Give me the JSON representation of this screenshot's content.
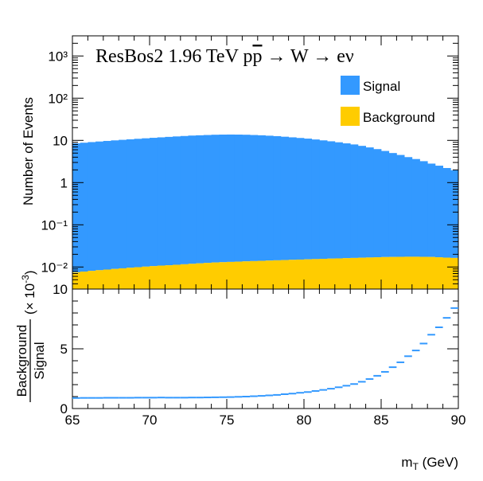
{
  "chart_data": [
    {
      "type": "area",
      "panel": "top",
      "title": "ResBos2 1.96 TeV pp̄ → W → eν",
      "title_parts": {
        "generator": "ResBos2",
        "energy": "1.96 TeV",
        "p": "p",
        "pbar": "p",
        "arrow1": "→",
        "w": "W",
        "arrow2": "→",
        "final": "eν"
      },
      "ylabel": "Number of Events",
      "xlim": [
        65,
        90
      ],
      "ylim": [
        0.003,
        3000
      ],
      "yscale": "log",
      "ytick_labels": [
        "10⁻²",
        "10⁻¹",
        "1",
        "10",
        "10²",
        "10³"
      ],
      "ytick_values": [
        0.01,
        0.1,
        1,
        10,
        100,
        1000
      ],
      "legend_position": "top-right",
      "stacked": true,
      "series": [
        {
          "name": "Signal",
          "color": "#3399ff",
          "x": [
            65,
            65.5,
            66,
            66.5,
            67,
            67.5,
            68,
            68.5,
            69,
            69.5,
            70,
            70.5,
            71,
            71.5,
            72,
            72.5,
            73,
            73.5,
            74,
            74.5,
            75,
            75.5,
            76,
            76.5,
            77,
            77.5,
            78,
            78.5,
            79,
            79.5,
            80,
            80.5,
            81,
            81.5,
            82,
            82.5,
            83,
            83.5,
            84,
            84.5,
            85,
            85.5,
            86,
            86.5,
            87,
            87.5,
            88,
            88.5,
            89,
            89.5
          ],
          "values": [
            8.5,
            8.8,
            9.1,
            9.4,
            9.7,
            10.0,
            10.3,
            10.6,
            10.9,
            11.2,
            11.5,
            11.8,
            12.1,
            12.4,
            12.7,
            13.0,
            13.2,
            13.4,
            13.6,
            13.7,
            13.75,
            13.7,
            13.6,
            13.4,
            13.2,
            12.9,
            12.6,
            12.2,
            11.8,
            11.4,
            11.0,
            10.5,
            10.0,
            9.5,
            9.0,
            8.5,
            8.0,
            7.4,
            6.8,
            6.2,
            5.6,
            5.0,
            4.5,
            4.0,
            3.6,
            3.2,
            2.8,
            2.5,
            2.2,
            1.95
          ]
        },
        {
          "name": "Background",
          "color": "#ffcc00",
          "x": [
            65,
            65.5,
            66,
            66.5,
            67,
            67.5,
            68,
            68.5,
            69,
            69.5,
            70,
            70.5,
            71,
            71.5,
            72,
            72.5,
            73,
            73.5,
            74,
            74.5,
            75,
            75.5,
            76,
            76.5,
            77,
            77.5,
            78,
            78.5,
            79,
            79.5,
            80,
            80.5,
            81,
            81.5,
            82,
            82.5,
            83,
            83.5,
            84,
            84.5,
            85,
            85.5,
            86,
            86.5,
            87,
            87.5,
            88,
            88.5,
            89,
            89.5
          ],
          "values": [
            0.0075,
            0.0078,
            0.0081,
            0.0084,
            0.0087,
            0.009,
            0.0093,
            0.0096,
            0.0099,
            0.0102,
            0.0105,
            0.0108,
            0.011,
            0.0113,
            0.0116,
            0.0119,
            0.0122,
            0.0125,
            0.0128,
            0.013,
            0.0132,
            0.0134,
            0.0136,
            0.0138,
            0.014,
            0.0142,
            0.0144,
            0.0146,
            0.0148,
            0.015,
            0.0152,
            0.0154,
            0.0156,
            0.0158,
            0.016,
            0.0162,
            0.0164,
            0.0166,
            0.0168,
            0.017,
            0.0172,
            0.0173,
            0.0174,
            0.0175,
            0.0175,
            0.0174,
            0.0173,
            0.017,
            0.0167,
            0.0164
          ]
        }
      ]
    },
    {
      "type": "line",
      "panel": "bottom",
      "ylabel_num": "Background",
      "ylabel_den": "Signal",
      "ylabel_scale": "(× 10",
      "ylabel_scale_exp": "-3",
      "ylabel_scale_close": ")",
      "xlabel": "m",
      "xlabel_sub": "T",
      "xlabel_unit": " (GeV)",
      "xlim": [
        65,
        90
      ],
      "ylim": [
        0,
        10
      ],
      "xtick_labels": [
        "65",
        "70",
        "75",
        "80",
        "85",
        "90"
      ],
      "xtick_values": [
        65,
        70,
        75,
        80,
        85,
        90
      ],
      "ytick_labels": [
        "0",
        "5",
        "10"
      ],
      "ytick_values": [
        0,
        5,
        10
      ],
      "color": "#3399ff",
      "x": [
        65,
        65.5,
        66,
        66.5,
        67,
        67.5,
        68,
        68.5,
        69,
        69.5,
        70,
        70.5,
        71,
        71.5,
        72,
        72.5,
        73,
        73.5,
        74,
        74.5,
        75,
        75.5,
        76,
        76.5,
        77,
        77.5,
        78,
        78.5,
        79,
        79.5,
        80,
        80.5,
        81,
        81.5,
        82,
        82.5,
        83,
        83.5,
        84,
        84.5,
        85,
        85.5,
        86,
        86.5,
        87,
        87.5,
        88,
        88.5,
        89,
        89.5
      ],
      "values": [
        0.88,
        0.89,
        0.89,
        0.89,
        0.9,
        0.9,
        0.9,
        0.9,
        0.91,
        0.91,
        0.91,
        0.92,
        0.91,
        0.91,
        0.91,
        0.92,
        0.92,
        0.93,
        0.94,
        0.95,
        0.96,
        0.98,
        1.0,
        1.03,
        1.06,
        1.1,
        1.14,
        1.2,
        1.25,
        1.32,
        1.38,
        1.47,
        1.56,
        1.66,
        1.78,
        1.91,
        2.05,
        2.24,
        2.47,
        2.74,
        3.07,
        3.46,
        3.87,
        4.38,
        4.86,
        5.44,
        6.18,
        6.8,
        7.59,
        8.41
      ]
    }
  ]
}
